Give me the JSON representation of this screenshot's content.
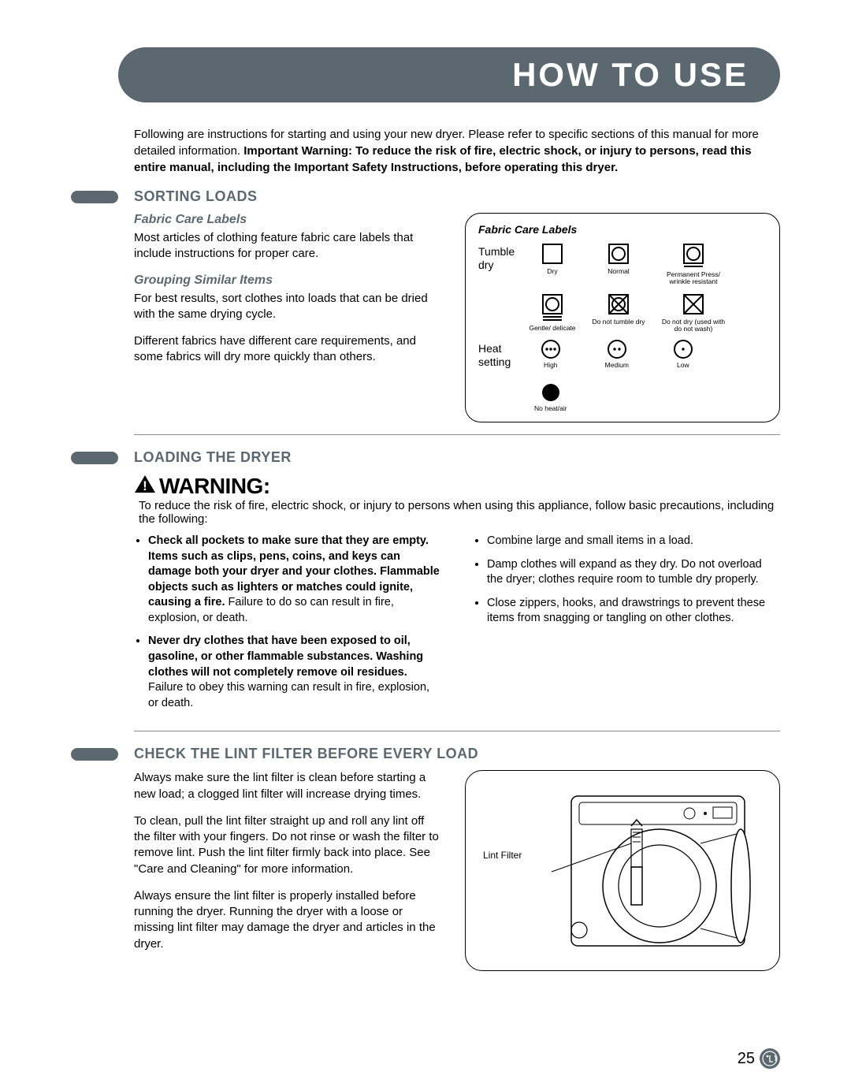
{
  "header": {
    "title": "HOW TO USE"
  },
  "intro": "Following are instructions for starting and using your new dryer. Please refer to specific sections of this manual for more detailed information. <b>Important Warning: To reduce the risk of fire, electric shock, or injury to persons, read this entire manual, including the Important Safety Instructions, before operating this dryer.</b>",
  "sorting": {
    "title": "SORTING LOADS",
    "fabric_heading": "Fabric Care Labels",
    "fabric_text": "Most articles of clothing feature fabric care labels that include instructions for proper care.",
    "grouping_heading": "Grouping Similar Items",
    "grouping_p1": "For best results, sort clothes into loads that can be dried with the same drying cycle.",
    "grouping_p2": "Different fabrics have different care requirements, and some fabrics will dry more quickly than others.",
    "panel": {
      "title": "Fabric Care Labels",
      "row1_label": "Tumble dry",
      "row1_icons": [
        {
          "label": "Dry"
        },
        {
          "label": "Normal"
        },
        {
          "label": "Permanent Press/ wrinkle resistant"
        }
      ],
      "row2_icons": [
        {
          "label": "Gentle/ delicate"
        },
        {
          "label": "Do not tumble dry"
        },
        {
          "label": "Do not dry (used with do not wash)"
        }
      ],
      "row3_label": "Heat setting",
      "row3_icons": [
        {
          "label": "High"
        },
        {
          "label": "Medium"
        },
        {
          "label": "Low"
        },
        {
          "label": "No heat/air"
        }
      ]
    }
  },
  "loading": {
    "title": "LOADING THE DRYER",
    "warning_label": "WARNING:",
    "warning_text": "To reduce the risk of fire, electric shock, or injury to persons when using this appliance, follow basic precautions, including the following:",
    "left_bullets": [
      "<b>Check all pockets to make sure that they are empty. Items such as clips, pens, coins, and keys can damage both your dryer and your clothes. Flammable objects such as lighters or matches could ignite, causing a fire.</b> Failure to do so can result in fire, explosion, or death.",
      "<b>Never dry clothes that have been exposed to oil, gasoline, or other flammable substances. Washing clothes will not completely remove oil residues.</b> Failure to obey this warning can result in fire, explosion, or death."
    ],
    "right_bullets": [
      "Combine large and small items in a load.",
      "Damp clothes will expand as they dry. Do not overload the dryer; clothes require room to tumble dry properly.",
      "Close zippers, hooks, and drawstrings to prevent these items from snagging or tangling on other clothes."
    ]
  },
  "lint": {
    "title": "CHECK THE LINT FILTER BEFORE EVERY LOAD",
    "p1": "Always make sure the lint filter is clean before starting a new load; a clogged lint filter will increase drying times.",
    "p2": "To clean, pull the lint filter straight up and roll any lint off the filter with your fingers. Do not rinse or wash the filter to remove lint. Push the lint filter firmly back into place. See \"Care and Cleaning\" for more information.",
    "p3": "Always ensure the lint filter is properly installed before running the dryer. Running the dryer with a loose or missing lint filter may damage the dryer and articles in the dryer.",
    "diagram_label": "Lint Filter"
  },
  "footer": {
    "page": "25"
  }
}
